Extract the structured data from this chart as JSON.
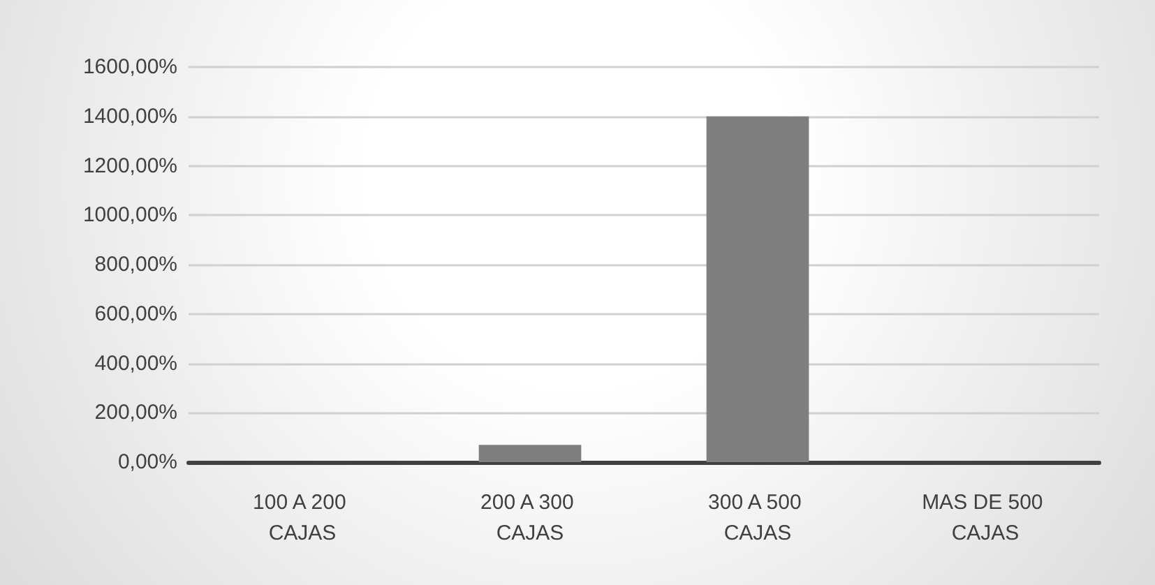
{
  "chart_data": {
    "type": "bar",
    "categories": [
      "100 A 200 CAJAS",
      "200 A 300 CAJAS",
      "300 A 500 CAJAS",
      "MAS DE 500 CAJAS"
    ],
    "values": [
      0,
      70,
      1400,
      0
    ],
    "color": "#7f7f7f",
    "ylim": [
      0,
      1600
    ],
    "yticks": [
      {
        "value": 0,
        "label": "0,00%"
      },
      {
        "value": 200,
        "label": "200,00%"
      },
      {
        "value": 400,
        "label": "400,00%"
      },
      {
        "value": 600,
        "label": "600,00%"
      },
      {
        "value": 800,
        "label": "800,00%"
      },
      {
        "value": 1000,
        "label": "1000,00%"
      },
      {
        "value": 1200,
        "label": "1200,00%"
      },
      {
        "value": 1400,
        "label": "1400,00%"
      },
      {
        "value": 1600,
        "label": "1600,00%"
      }
    ],
    "grid": true
  }
}
